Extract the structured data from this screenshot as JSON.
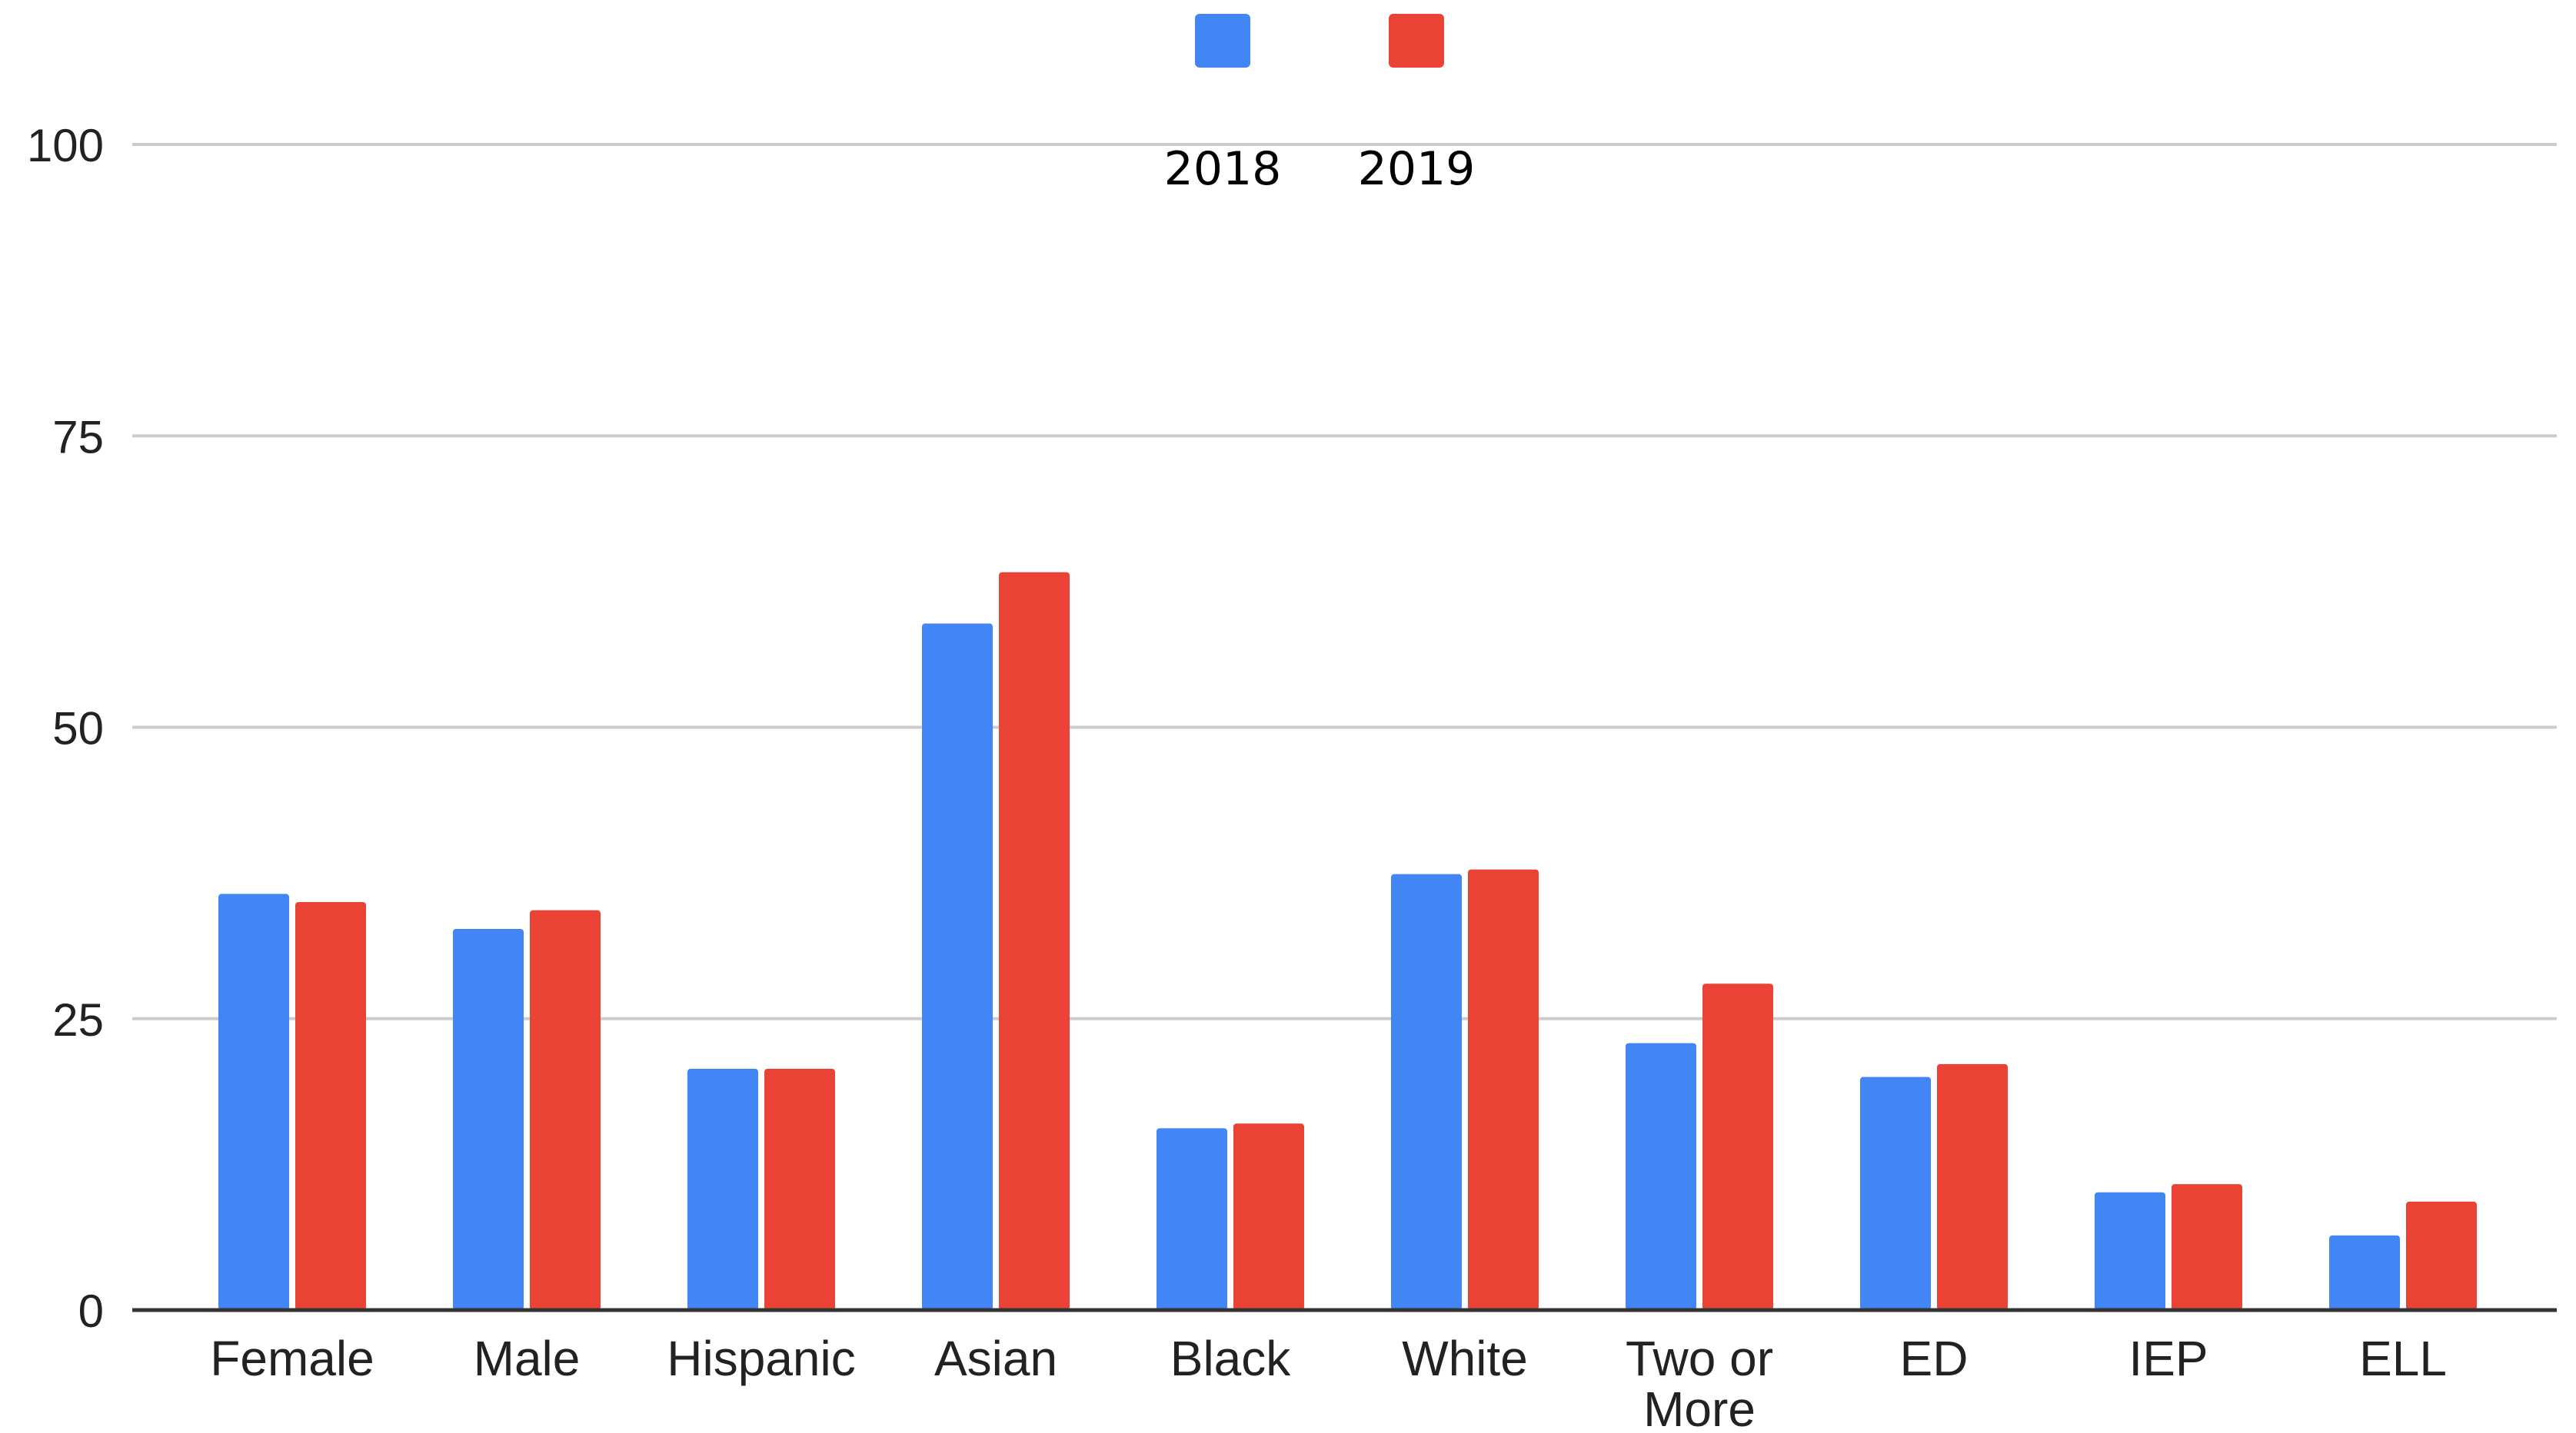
{
  "chart_data": {
    "type": "bar",
    "title": "",
    "xlabel": "",
    "ylabel": "",
    "ylim": [
      0,
      100
    ],
    "yticks": [
      "0",
      "25",
      "50",
      "75",
      "100"
    ],
    "grid": true,
    "legend": "top-center",
    "categories": [
      [
        "Female"
      ],
      [
        "Male"
      ],
      [
        "Hispanic"
      ],
      [
        "Asian"
      ],
      [
        "Black"
      ],
      [
        "White"
      ],
      [
        "Two or",
        "More"
      ],
      [
        "ED"
      ],
      [
        "IEP"
      ],
      [
        "ELL"
      ]
    ],
    "series": [
      {
        "name": "2018",
        "color": "#4285F4",
        "values": [
          35.7,
          32.7,
          20.7,
          58.9,
          15.6,
          37.4,
          22.9,
          20.0,
          10.1,
          6.4
        ]
      },
      {
        "name": "2019",
        "color": "#EA4335",
        "values": [
          35.0,
          34.3,
          20.7,
          63.3,
          16.0,
          37.8,
          28.0,
          21.1,
          10.8,
          9.3
        ]
      }
    ]
  }
}
